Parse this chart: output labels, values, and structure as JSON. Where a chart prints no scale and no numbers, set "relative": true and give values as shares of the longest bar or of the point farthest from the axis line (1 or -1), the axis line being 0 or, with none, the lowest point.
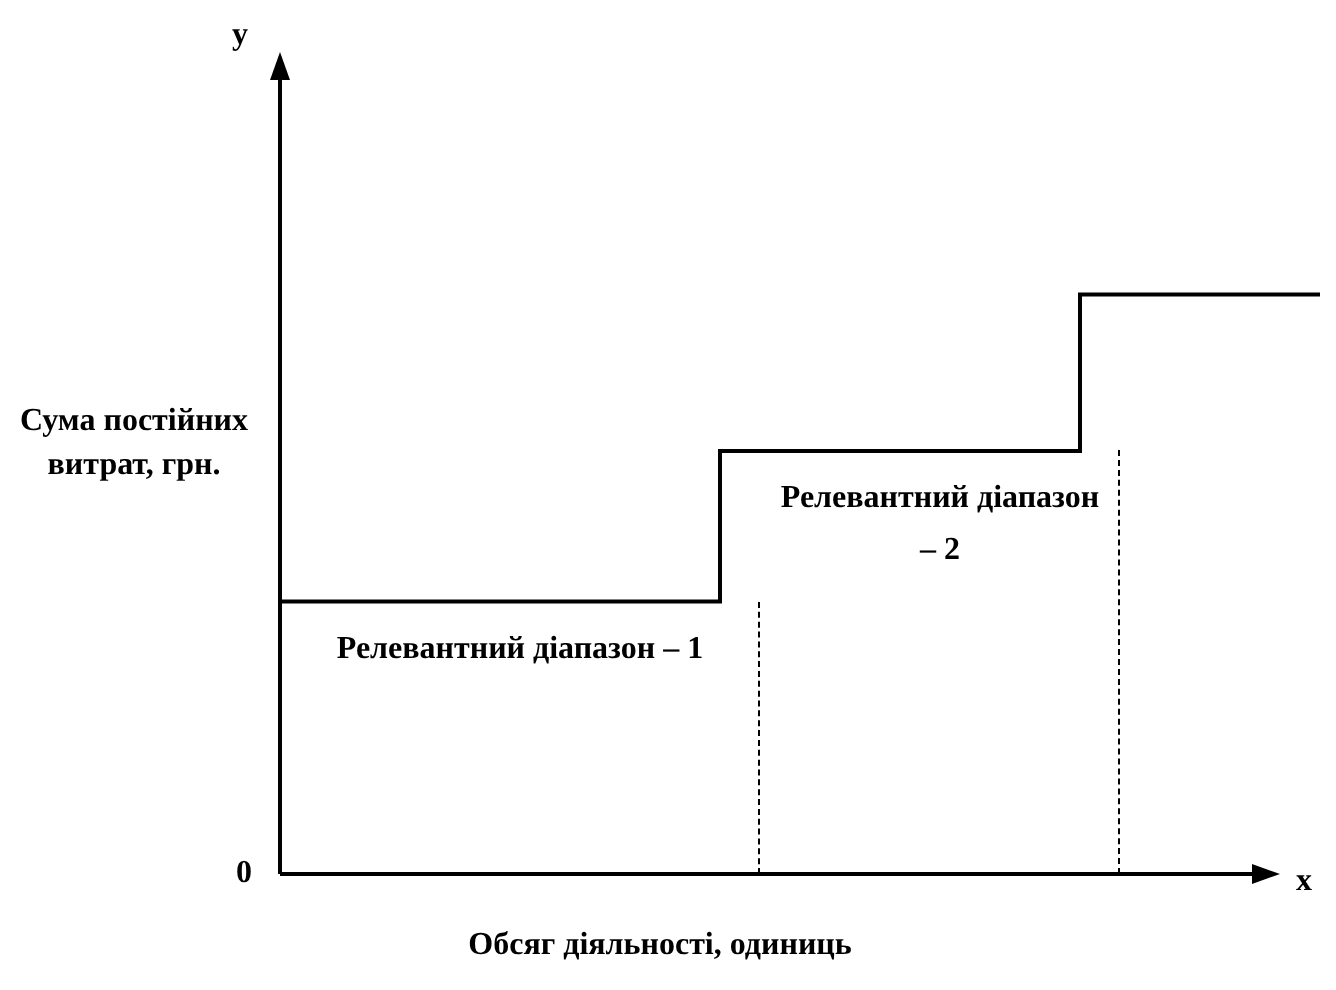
{
  "chart_data": {
    "type": "step",
    "relative": true,
    "ylabel": "Сума постійних витрат, грн.",
    "xlabel": "Обсяг діяльності, одиниць",
    "color": "#000000",
    "categories": [
      null,
      null,
      null,
      null,
      null,
      null,
      null,
      null,
      null,
      null,
      null,
      null,
      null,
      null,
      null,
      null,
      null,
      null,
      null,
      null,
      null,
      null,
      null,
      null,
      null,
      null,
      null
    ],
    "values": [
      0.47,
      0.47,
      0.47,
      0.47,
      0.47,
      0.47,
      0.47,
      0.47,
      0.47,
      0.47,
      0.47,
      0.47,
      0.73,
      0.73,
      0.73,
      0.73,
      0.73,
      0.73,
      0.73,
      0.73,
      0.73,
      1,
      1,
      1,
      1,
      1,
      1
    ],
    "annotations": [
      "Релевантний діапазон – 1",
      "Релевантний діапазон – 2",
      "y",
      "x",
      "0"
    ],
    "legend": false
  }
}
